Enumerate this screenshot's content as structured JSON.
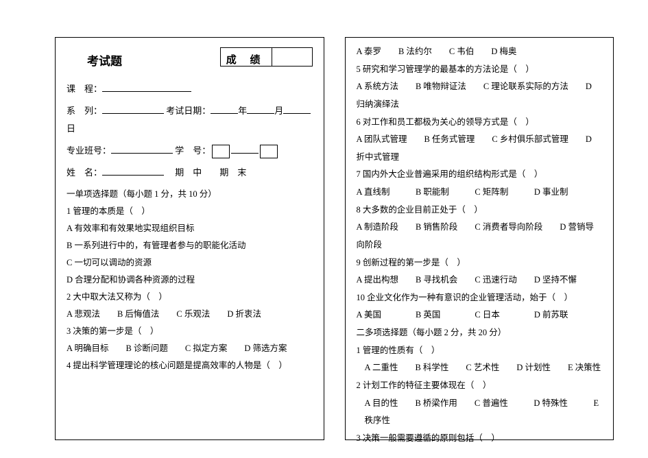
{
  "left": {
    "title": "考试题",
    "score_label": "成 绩",
    "fields": {
      "course_label": "课　程：",
      "series_label": "系　列：",
      "exam_date_label": "考试日期：",
      "year": "年",
      "month": "月",
      "day": "日",
      "class_label": "专业班号：",
      "student_no_label": "学　号：",
      "name_label": "姓　名：",
      "midterm": "期　中",
      "final": "期　末"
    },
    "section1_title": "一单项选择题（每小题 1 分，共 10 分）",
    "q1": "1 管理的本质是（　）",
    "q1a": "A 有效率和有效果地实现组织目标",
    "q1b": "B 一系列进行中的，有管理者参与的职能化活动",
    "q1c": "C 一切可以调动的资源",
    "q1d": "D 合理分配和协调各种资源的过程",
    "q2": "2 大中取大法又称为（　）",
    "q2opts": "A 悲观法　　B 后悔值法　　C 乐观法　　D 折衷法",
    "q3": "3 决策的第一步是（　）",
    "q3opts": "A 明确目标　　B 诊断问题　　C 拟定方案　　D 筛选方案",
    "q4": "4 提出科学管理理论的核心问题是提高效率的人物是（　）"
  },
  "right": {
    "q4opts": "A 泰罗　　B 法约尔　　C 韦伯　　D 梅奥",
    "q5": "5 研究和学习管理学的最基本的方法论是（　）",
    "q5opts": "A 系统方法　　B 唯物辩证法　　C 理论联系实际的方法　　D 归纳演绎法",
    "q6": "6 对工作和员工都极为关心的领导方式是（　）",
    "q6opts": "A 团队式管理　　B 任务式管理　　C 乡村俱乐部式管理　　D 折中式管理",
    "q7": "7 国内外大企业普遍采用的组织结构形式是（　）",
    "q7opts": "A 直线制　　　B 职能制　　　C 矩阵制　　　D 事业制",
    "q8": "8 大多数的企业目前正处于（　）",
    "q8opts": "A 制造阶段　　B 销售阶段　　C 消费者导向阶段　　D 营销导向阶段",
    "q9": "9 创新过程的第一步是（　）",
    "q9opts": "A 提出构想　　B 寻找机会　　C 迅速行动　　D 坚持不懈",
    "q10": "10 企业文化作为一种有意识的企业管理活动，始于（　）",
    "q10opts": "A 美国　　　　B 英国　　　　C 日本　　　　D 前苏联",
    "section2_title": "二多项选择题（每小题 2 分，共 20 分）",
    "m1": "1 管理的性质有（　）",
    "m1opts": "A 二重性　　B 科学性　　C 艺术性　　D 计划性　　E 决策性",
    "m2": "2 计划工作的特征主要体现在（　）",
    "m2opts": "A 目的性　　B 桥梁作用　　C 普遍性　　　D 特殊性　　　E 秩序性",
    "m3": "3 决策一般需要遵循的原则包括（　）"
  }
}
